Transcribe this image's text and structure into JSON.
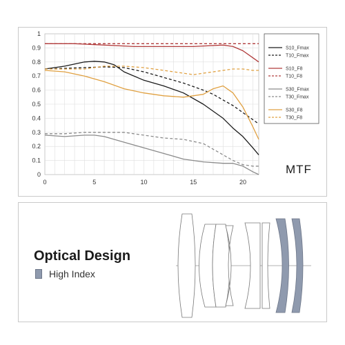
{
  "mtf_panel": {
    "label": "MTF"
  },
  "chart_data": {
    "type": "line",
    "xlim": [
      0,
      21.6
    ],
    "ylim": [
      0,
      1
    ],
    "x_ticks": [
      "0",
      "5",
      "10",
      "15",
      "20"
    ],
    "y_ticks": [
      "0",
      "0.1",
      "0.2",
      "0.3",
      "0.4",
      "0.5",
      "0.6",
      "0.7",
      "0.8",
      "0.9",
      "1"
    ],
    "grid": true,
    "legend_position": "right",
    "series": [
      {
        "name": "S10_Fmax",
        "color": "#1a1a1a",
        "dashed": false,
        "x": [
          0,
          2,
          4,
          5,
          6,
          7,
          8,
          10,
          12,
          14,
          16,
          18,
          19,
          20,
          21,
          21.6
        ],
        "y": [
          0.75,
          0.77,
          0.8,
          0.805,
          0.8,
          0.78,
          0.73,
          0.67,
          0.63,
          0.58,
          0.5,
          0.4,
          0.33,
          0.27,
          0.19,
          0.14
        ]
      },
      {
        "name": "T10_Fmax",
        "color": "#1a1a1a",
        "dashed": true,
        "x": [
          0,
          2,
          4,
          6,
          8,
          10,
          12,
          14,
          16,
          17,
          18,
          19,
          20,
          21,
          21.6
        ],
        "y": [
          0.75,
          0.755,
          0.76,
          0.765,
          0.76,
          0.73,
          0.69,
          0.65,
          0.6,
          0.57,
          0.53,
          0.49,
          0.44,
          0.39,
          0.36
        ]
      },
      {
        "name": "S10_F8",
        "color": "#b03a3a",
        "dashed": false,
        "x": [
          0,
          3,
          6,
          9,
          12,
          15,
          18,
          19,
          20,
          21,
          21.6
        ],
        "y": [
          0.93,
          0.93,
          0.92,
          0.91,
          0.91,
          0.91,
          0.92,
          0.91,
          0.88,
          0.83,
          0.8
        ]
      },
      {
        "name": "T10_F8",
        "color": "#b03a3a",
        "dashed": true,
        "x": [
          0,
          5,
          10,
          15,
          20,
          21.6
        ],
        "y": [
          0.93,
          0.93,
          0.93,
          0.93,
          0.93,
          0.93
        ]
      },
      {
        "name": "S30_Fmax",
        "color": "#8a8a8a",
        "dashed": false,
        "x": [
          0,
          2,
          4,
          5,
          6,
          8,
          10,
          12,
          14,
          16,
          18,
          19,
          20,
          21,
          21.6
        ],
        "y": [
          0.28,
          0.27,
          0.28,
          0.28,
          0.27,
          0.23,
          0.19,
          0.15,
          0.11,
          0.09,
          0.08,
          0.08,
          0.06,
          0.02,
          0.0
        ]
      },
      {
        "name": "T30_Fmax",
        "color": "#8a8a8a",
        "dashed": true,
        "x": [
          0,
          2,
          4,
          6,
          8,
          10,
          12,
          14,
          16,
          18,
          19,
          20,
          21,
          21.6
        ],
        "y": [
          0.29,
          0.29,
          0.3,
          0.3,
          0.3,
          0.28,
          0.26,
          0.25,
          0.22,
          0.14,
          0.1,
          0.07,
          0.06,
          0.06
        ]
      },
      {
        "name": "S30_F8",
        "color": "#e0a040",
        "dashed": false,
        "x": [
          0,
          2,
          4,
          6,
          8,
          10,
          12,
          14,
          16,
          17,
          18,
          19,
          20,
          21,
          21.6
        ],
        "y": [
          0.74,
          0.73,
          0.7,
          0.66,
          0.61,
          0.58,
          0.56,
          0.55,
          0.57,
          0.61,
          0.63,
          0.58,
          0.48,
          0.34,
          0.25
        ]
      },
      {
        "name": "T30_F8",
        "color": "#e0a040",
        "dashed": true,
        "x": [
          0,
          2,
          4,
          6,
          8,
          10,
          12,
          14,
          15,
          16,
          17,
          18,
          19,
          20,
          21,
          21.6
        ],
        "y": [
          0.75,
          0.75,
          0.75,
          0.77,
          0.77,
          0.76,
          0.74,
          0.72,
          0.71,
          0.72,
          0.73,
          0.74,
          0.75,
          0.75,
          0.74,
          0.74
        ]
      }
    ],
    "legend_groups": [
      [
        0,
        1
      ],
      [
        2,
        3
      ],
      [
        4,
        5
      ],
      [
        6,
        7
      ]
    ]
  },
  "optical_design": {
    "title": "Optical Design",
    "legend_label": "High Index",
    "high_index_color": "#8f9aae"
  }
}
